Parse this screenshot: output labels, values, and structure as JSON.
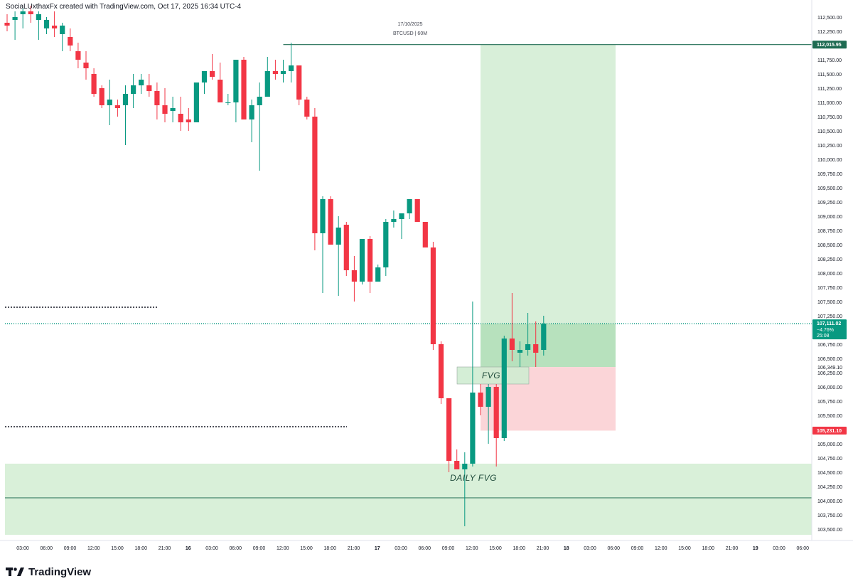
{
  "header": {
    "caption": "SociaLUxthaxFx created with TradingView.com, Oct 17, 2025 16:34 UTC-4"
  },
  "watermark": {
    "date": "17/10/2025",
    "symbol": "BTCUSD | 60M"
  },
  "footer": {
    "brand": "TradingView",
    "logo_icon": "tradingview-logo-icon"
  },
  "colors": {
    "up": "#089981",
    "down": "#f23645",
    "target_zone": "#d8efd9",
    "target_zone_active": "#b7e1bd",
    "stop_zone": "#fbd5d8",
    "fvg_zone": "#cfecd2",
    "daily_fvg": "#d9f0d9"
  },
  "chart_data": {
    "type": "candlestick",
    "symbol": "BTCUSD",
    "timeframe": "60M",
    "ylim": [
      103400,
      112600
    ],
    "y_ticks": [
      112500,
      112250,
      112000,
      111750,
      111500,
      111250,
      111000,
      110750,
      110500,
      110250,
      110000,
      109750,
      109500,
      109250,
      109000,
      108750,
      108500,
      108250,
      108000,
      107750,
      107500,
      107250,
      107000,
      106750,
      106500,
      106250,
      106000,
      105750,
      105500,
      105250,
      105000,
      104750,
      104500,
      104250,
      104000,
      103750,
      103500
    ],
    "x_ticks": [
      "03:00",
      "06:00",
      "09:00",
      "12:00",
      "15:00",
      "18:00",
      "21:00",
      "16",
      "03:00",
      "06:00",
      "09:00",
      "12:00",
      "15:00",
      "18:00",
      "21:00",
      "17",
      "03:00",
      "06:00",
      "09:00",
      "12:00",
      "15:00",
      "18:00",
      "21:00",
      "18",
      "03:00",
      "06:00",
      "09:00",
      "12:00",
      "15:00",
      "18:00",
      "21:00",
      "19",
      "03:00",
      "06:00"
    ],
    "x_tick_bold": [
      "16",
      "17",
      "18",
      "19"
    ],
    "candles": [
      [
        112400,
        112550,
        112250,
        112350
      ],
      [
        112450,
        112600,
        112100,
        112500
      ],
      [
        112550,
        112650,
        112300,
        112600
      ],
      [
        112600,
        112700,
        112400,
        112550
      ],
      [
        112450,
        112600,
        112100,
        112550
      ],
      [
        112300,
        112500,
        112200,
        112450
      ],
      [
        112350,
        112600,
        112150,
        112300
      ],
      [
        112200,
        112400,
        111900,
        112350
      ],
      [
        112150,
        112300,
        111900,
        112000
      ],
      [
        111900,
        112050,
        111600,
        111750
      ],
      [
        111700,
        111900,
        111400,
        111600
      ],
      [
        111500,
        111600,
        111100,
        111150
      ],
      [
        111250,
        111300,
        110900,
        110950
      ],
      [
        110950,
        111400,
        110600,
        111050
      ],
      [
        110950,
        111050,
        110750,
        110900
      ],
      [
        110950,
        111300,
        110250,
        111150
      ],
      [
        111150,
        111500,
        110900,
        111300
      ],
      [
        111300,
        111500,
        111150,
        111400
      ],
      [
        111300,
        111500,
        111100,
        111200
      ],
      [
        111200,
        111350,
        110700,
        110950
      ],
      [
        110950,
        111250,
        110650,
        110800
      ],
      [
        110850,
        111100,
        110650,
        110900
      ],
      [
        110800,
        111100,
        110500,
        110650
      ],
      [
        110700,
        110900,
        110500,
        110650
      ],
      [
        110650,
        111350,
        110650,
        111350
      ],
      [
        111350,
        111550,
        111150,
        111550
      ],
      [
        111550,
        111850,
        111400,
        111450
      ],
      [
        111400,
        111700,
        111000,
        111000
      ],
      [
        111000,
        111150,
        110950,
        111000
      ],
      [
        111000,
        111750,
        110650,
        111750
      ],
      [
        111750,
        111800,
        110700,
        110700
      ],
      [
        110700,
        111050,
        110300,
        110950
      ],
      [
        110950,
        111350,
        109800,
        111100
      ],
      [
        111100,
        111800,
        111100,
        111550
      ],
      [
        111550,
        111750,
        111400,
        111500
      ],
      [
        111500,
        111750,
        111350,
        111550
      ],
      [
        111550,
        112050,
        111350,
        111650
      ],
      [
        111650,
        111650,
        110950,
        111050
      ],
      [
        111050,
        111100,
        110700,
        110750
      ],
      [
        110750,
        110900,
        108400,
        108700
      ],
      [
        108700,
        109350,
        107650,
        109300
      ],
      [
        109300,
        109350,
        108500,
        108500
      ],
      [
        108500,
        109000,
        107600,
        108800
      ],
      [
        108850,
        108900,
        107950,
        108050
      ],
      [
        108050,
        108300,
        107500,
        107850
      ],
      [
        107850,
        108600,
        107800,
        108600
      ],
      [
        108600,
        108650,
        107650,
        107850
      ],
      [
        107850,
        108150,
        107850,
        108100
      ],
      [
        108100,
        108950,
        107950,
        108900
      ],
      [
        108900,
        109100,
        108800,
        108950
      ],
      [
        108950,
        109000,
        108600,
        109050
      ],
      [
        109050,
        109300,
        108950,
        109300
      ],
      [
        109300,
        109300,
        108900,
        108900
      ],
      [
        108900,
        108900,
        108450,
        108450
      ],
      [
        108450,
        108550,
        106650,
        106750
      ],
      [
        106750,
        106800,
        105700,
        105800
      ],
      [
        105800,
        105800,
        104500,
        104700
      ],
      [
        104700,
        104900,
        104550,
        104550
      ],
      [
        104550,
        104850,
        103550,
        104650
      ],
      [
        104650,
        107500,
        104600,
        105900
      ],
      [
        105900,
        106050,
        105500,
        105650
      ],
      [
        105650,
        106050,
        105000,
        106000
      ],
      [
        106000,
        106050,
        104600,
        105100
      ],
      [
        105100,
        106900,
        105050,
        106850
      ],
      [
        106850,
        107650,
        106450,
        106650
      ],
      [
        106600,
        106800,
        106350,
        106650
      ],
      [
        106650,
        107300,
        106550,
        106750
      ],
      [
        106750,
        107150,
        106350,
        106600
      ],
      [
        106650,
        107250,
        106550,
        107111
      ]
    ],
    "price_labels": [
      {
        "price": 112015.95,
        "text": "112,015.95",
        "color": "#1e6b52"
      },
      {
        "price": 107111.02,
        "text": "107,111.02",
        "sub1": "−4.76%",
        "sub2": "25:08",
        "color": "#089981"
      },
      {
        "price": 106349.1,
        "text": "106,349.10",
        "color": "none"
      },
      {
        "price": 105231.1,
        "text": "105,231.10",
        "color": "#f23645"
      }
    ],
    "horizontal_lines": [
      {
        "price": 112015.95,
        "style": "solid",
        "color": "#1e6b52",
        "from_candle": 35
      },
      {
        "price": 107400,
        "style": "dotted",
        "color": "#131722",
        "from_candle": 0,
        "to_candle": 15
      },
      {
        "price": 105300,
        "style": "dotted",
        "color": "#131722",
        "from_candle": 0,
        "to_candle": 34
      },
      {
        "price": 104050,
        "style": "solid",
        "color": "#1e6b52",
        "from_candle": 0
      },
      {
        "price": 107111.02,
        "style": "dotted",
        "color": "#089981",
        "from_candle": 0
      }
    ],
    "zones": [
      {
        "name": "long-target",
        "from_time": 12.1,
        "to_time": 18.4,
        "top": 112015.95,
        "bottom": 106349.1,
        "color": "#d8efd9"
      },
      {
        "name": "long-active",
        "from_time": 12.1,
        "to_time": 18.4,
        "top": 107111.02,
        "bottom": 106349.1,
        "color": "#b7e1bd"
      },
      {
        "name": "long-stop",
        "from_time": 12.1,
        "to_time": 18.4,
        "top": 106349.1,
        "bottom": 105231.1,
        "color": "#fbd5d8"
      },
      {
        "name": "fvg",
        "from_time": 11.5,
        "to_time": 14.4,
        "top": 106350,
        "bottom": 106050,
        "color": "#cfecd2"
      },
      {
        "name": "daily-fvg",
        "from_time": 0,
        "to_time": 120,
        "top": 104650,
        "bottom": 103400,
        "color": "#d9f0d9"
      }
    ],
    "annotations": [
      {
        "text": "FVG",
        "price": 106200,
        "time": 13.0
      },
      {
        "text": "DAILY  FVG",
        "price": 104400,
        "time": 11.0
      }
    ],
    "grid": false,
    "legend": "none"
  }
}
